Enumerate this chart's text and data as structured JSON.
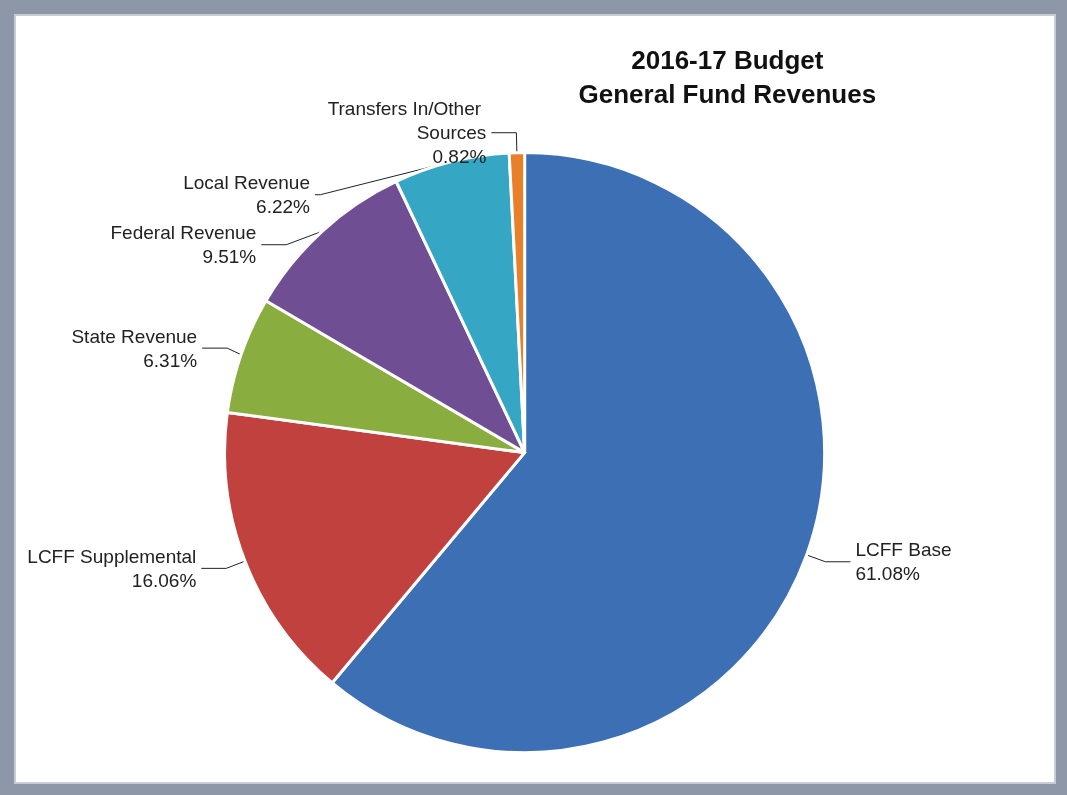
{
  "chart_data": {
    "type": "pie",
    "title": "2016-17 Budget\nGeneral Fund Revenues",
    "categories": [
      "LCFF Base",
      "LCFF Supplemental",
      "State Revenue",
      "Federal Revenue",
      "Local Revenue",
      "Transfers In/Other Sources"
    ],
    "values": [
      61.08,
      16.06,
      6.31,
      9.51,
      6.22,
      0.82
    ],
    "value_labels": [
      "61.08%",
      "16.06%",
      "6.31%",
      "9.51%",
      "6.22%",
      "0.82%"
    ],
    "colors": [
      "#3d6fb5",
      "#c0413e",
      "#8aad3f",
      "#6f4e94",
      "#35a6c4",
      "#e8802a"
    ],
    "legend": false
  }
}
